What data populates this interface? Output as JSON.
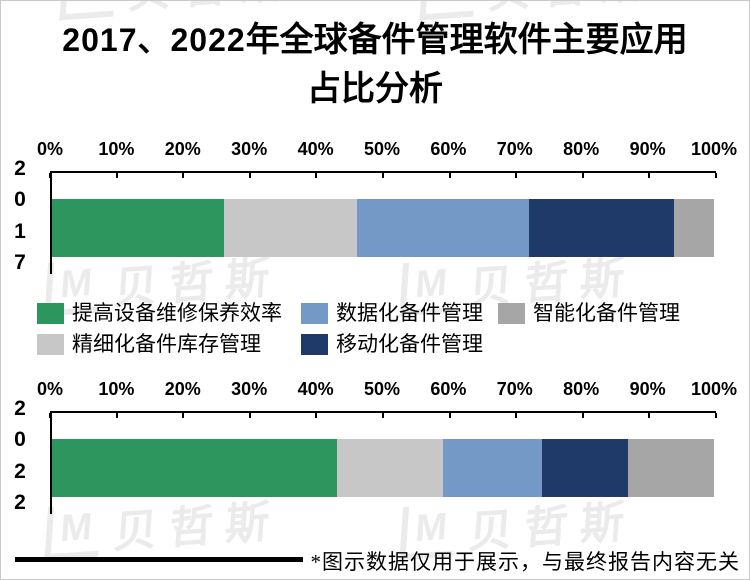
{
  "title": {
    "line1_numbers": "2017、2022",
    "line1_text": "年全球备件管理软件主要应用",
    "line2": "占比分析"
  },
  "footnote": "*图示数据仅用于展示，与最终报告内容无关",
  "watermark": {
    "logo": "M",
    "text": "贝哲斯"
  },
  "colors": {
    "green": "#2C965E",
    "light_gray": "#C7C7C7",
    "light_blue": "#7499C6",
    "dark_blue": "#1F3A68",
    "gray": "#A6A6A6"
  },
  "legend": {
    "rows": [
      [
        {
          "label": "提高设备维修保养效率",
          "color_key": "green"
        },
        {
          "label": "数据化备件管理",
          "color_key": "light_blue"
        },
        {
          "label": "智能化备件管理",
          "color_key": "gray"
        }
      ],
      [
        {
          "label": "精细化备件库存管理",
          "color_key": "light_gray"
        },
        {
          "label": "移动化备件管理",
          "color_key": "dark_blue"
        }
      ]
    ]
  },
  "chart_data": [
    {
      "type": "bar",
      "orientation": "horizontal",
      "stacked": true,
      "title": "2017、2022年全球备件管理软件主要应用占比分析",
      "y_label": "2017",
      "xlim": [
        0,
        100
      ],
      "grid": false,
      "legend_position": "between-charts",
      "x_ticks": [
        "0%",
        "10%",
        "20%",
        "30%",
        "40%",
        "50%",
        "60%",
        "70%",
        "80%",
        "90%",
        "100%"
      ],
      "series": [
        {
          "name": "提高设备维修保养效率",
          "color_key": "green",
          "value": 26
        },
        {
          "name": "精细化备件库存管理",
          "color_key": "light_gray",
          "value": 20
        },
        {
          "name": "数据化备件管理",
          "color_key": "light_blue",
          "value": 26
        },
        {
          "name": "移动化备件管理",
          "color_key": "dark_blue",
          "value": 22
        },
        {
          "name": "智能化备件管理",
          "color_key": "gray",
          "value": 6
        }
      ]
    },
    {
      "type": "bar",
      "orientation": "horizontal",
      "stacked": true,
      "title": "2017、2022年全球备件管理软件主要应用占比分析",
      "y_label": "2022",
      "xlim": [
        0,
        100
      ],
      "grid": false,
      "legend_position": "between-charts",
      "x_ticks": [
        "0%",
        "10%",
        "20%",
        "30%",
        "40%",
        "50%",
        "60%",
        "70%",
        "80%",
        "90%",
        "100%"
      ],
      "series": [
        {
          "name": "提高设备维修保养效率",
          "color_key": "green",
          "value": 43
        },
        {
          "name": "精细化备件库存管理",
          "color_key": "light_gray",
          "value": 16
        },
        {
          "name": "数据化备件管理",
          "color_key": "light_blue",
          "value": 15
        },
        {
          "name": "移动化备件管理",
          "color_key": "dark_blue",
          "value": 13
        },
        {
          "name": "智能化备件管理",
          "color_key": "gray",
          "value": 13
        }
      ]
    }
  ]
}
